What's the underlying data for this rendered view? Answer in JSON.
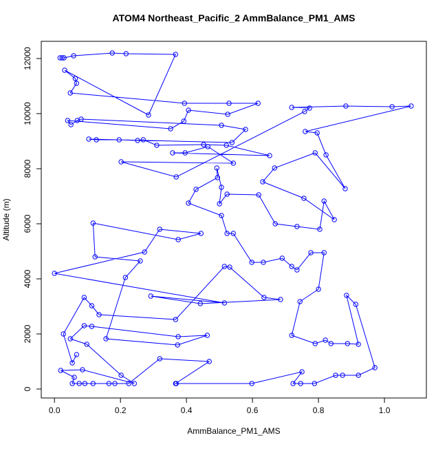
{
  "chart_data": {
    "type": "line",
    "title": "ATOM4 Northeast_Pacific_2 AmmBalance_PM1_AMS",
    "x_label": "AmmBalance_PM1_AMS",
    "y_label": "Altitude (m)",
    "xlim": [
      -0.04,
      1.127
    ],
    "ylim": [
      -325,
      12625
    ],
    "xticks": [
      {
        "value": 0,
        "label": "0.0"
      },
      {
        "value": 0.2,
        "label": "0.2"
      },
      {
        "value": 0.4,
        "label": "0.4"
      },
      {
        "value": 0.6,
        "label": "0.6"
      },
      {
        "value": 0.8,
        "label": "0.8"
      },
      {
        "value": 1,
        "label": "1.0"
      }
    ],
    "yticks": [
      0,
      2000,
      4000,
      6000,
      8000,
      10000,
      12000
    ],
    "grid": false,
    "series": [
      {
        "color": "#0000ff",
        "x": [
          0.017,
          0.023,
          0.029,
          0.058,
          0.175,
          0.217,
          0.367,
          0.285,
          0.031,
          0.063,
          0.067,
          0.048,
          0.394,
          0.529,
          0.617,
          0.525,
          0.406,
          0.392,
          0.352,
          0.04,
          0.05,
          0.069,
          0.081,
          0.506,
          0.579,
          0.538,
          0.104,
          0.127,
          0.196,
          0.252,
          0.269,
          0.31,
          0.452,
          0.521,
          0.652,
          0.358,
          0.396,
          0.465,
          0.542,
          0.202,
          0.369,
          0.758,
          0.773,
          0.719,
          0.883,
          1.023,
          1.081,
          0.76,
          0.796,
          0.823,
          0.881,
          0.79,
          0.667,
          0.631,
          0.756,
          0.848,
          0.817,
          0.804,
          0.735,
          0.669,
          0.619,
          0.523,
          0.5,
          0.506,
          0.492,
          0.494,
          0.429,
          0.406,
          0.506,
          0.523,
          0.542,
          0.598,
          0.633,
          0.69,
          0.719,
          0.735,
          0.777,
          0.817,
          0.8,
          0.744,
          0.719,
          0.79,
          0.821,
          0.838,
          0.888,
          0.921,
          0.885,
          0.913,
          0.971,
          0.921,
          0.873,
          0.852,
          0.788,
          0.746,
          0.723,
          0.75,
          0.598,
          0.369,
          0.367,
          0.469,
          0.319,
          0.225,
          0.183,
          0.165,
          0.117,
          0.092,
          0.075,
          0.054,
          0.06,
          0.019,
          0.085,
          0.242,
          0.202,
          0.098,
          0.048,
          0.09,
          0.113,
          0.375,
          0.463,
          0.373,
          0.156,
          0.215,
          0.26,
          0.123,
          0.117,
          0.375,
          0.444,
          0.319,
          0.273,
          0.0,
          0.515,
          0.292,
          0.442,
          0.685,
          0.635,
          0.531,
          0.515,
          0.367,
          0.135,
          0.113,
          0.09,
          0.027,
          0.054,
          0.067
        ],
        "values": [
          12025,
          12025,
          12025,
          12100,
          12200,
          12175,
          12150,
          9950,
          11575,
          11275,
          11100,
          10750,
          10375,
          10375,
          10375,
          9975,
          10125,
          9725,
          9450,
          9750,
          9600,
          9750,
          9800,
          9575,
          9425,
          8950,
          9075,
          9050,
          9050,
          9025,
          9050,
          8850,
          8875,
          8850,
          8475,
          8575,
          8575,
          8800,
          8200,
          8250,
          7700,
          10075,
          10200,
          10225,
          10275,
          10250,
          10275,
          9350,
          9300,
          8500,
          7275,
          8575,
          8025,
          7525,
          6925,
          6150,
          6825,
          5800,
          5900,
          6000,
          7050,
          7075,
          6725,
          7325,
          8025,
          7675,
          7250,
          6750,
          6300,
          5650,
          5650,
          4600,
          4600,
          4750,
          4450,
          4325,
          4950,
          4950,
          3625,
          3175,
          1950,
          1650,
          1775,
          1650,
          1650,
          1625,
          3400,
          3075,
          775,
          500,
          500,
          500,
          200,
          200,
          200,
          625,
          200,
          200,
          200,
          1000,
          1100,
          200,
          200,
          200,
          200,
          200,
          200,
          200,
          425,
          675,
          700,
          200,
          500,
          1625,
          1825,
          2300,
          2275,
          1900,
          1950,
          1600,
          1825,
          4050,
          4650,
          4800,
          6025,
          5425,
          5650,
          5800,
          4975,
          4200,
          3125,
          3375,
          3100,
          3250,
          3325,
          4425,
          4450,
          2525,
          2700,
          3025,
          3325,
          2000,
          950,
          1250
        ]
      }
    ]
  }
}
